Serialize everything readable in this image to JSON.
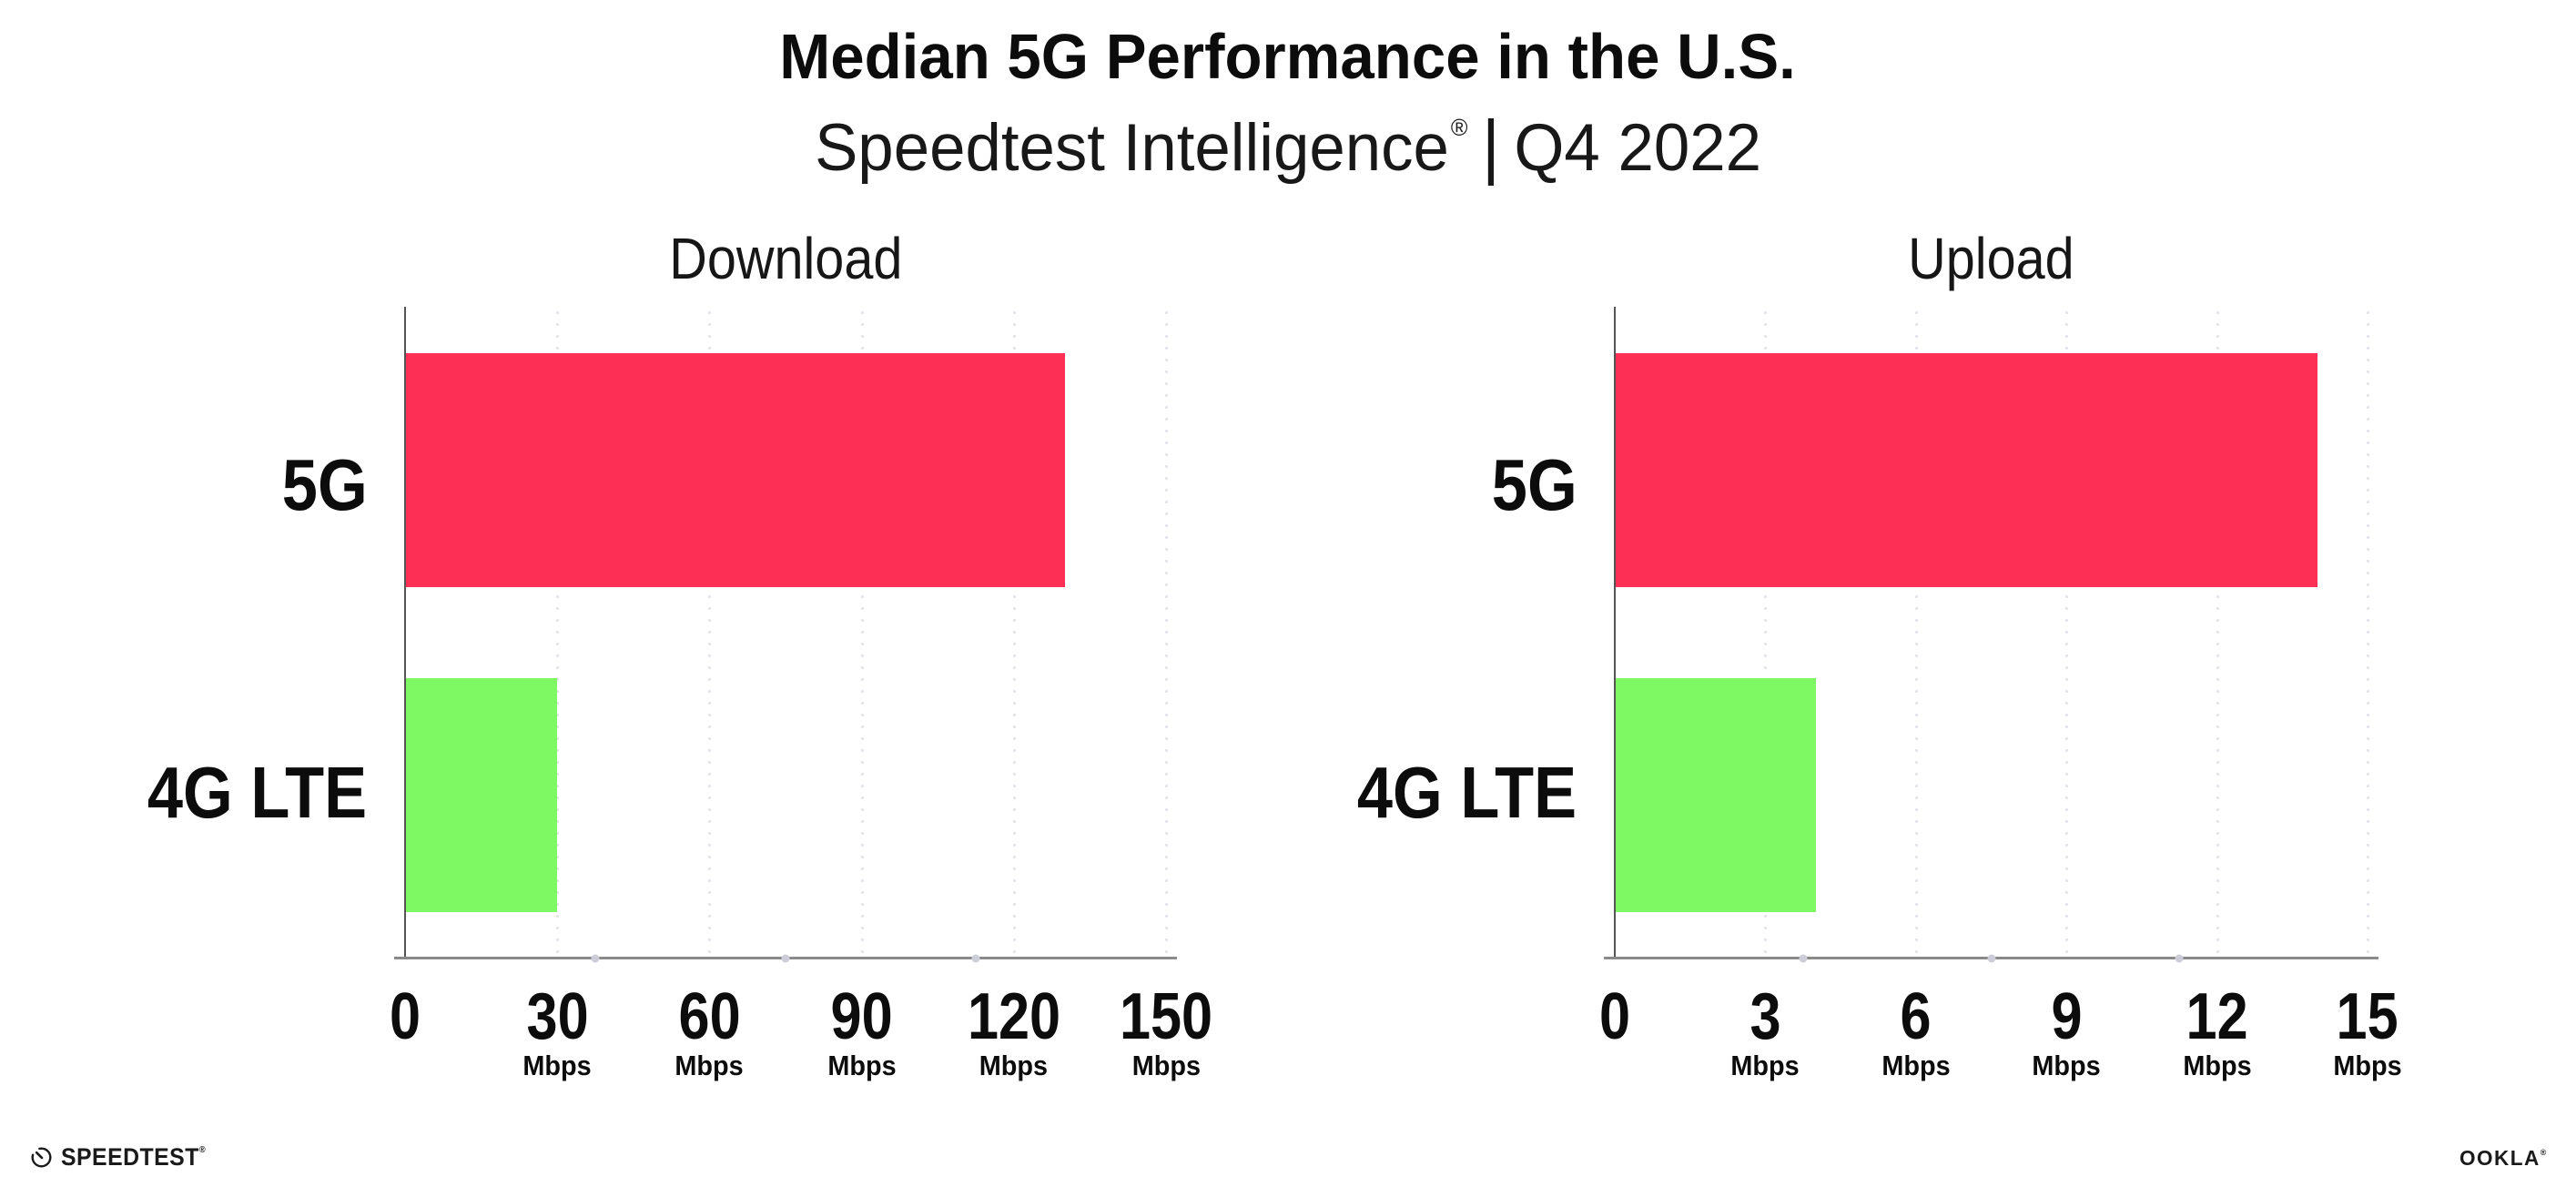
{
  "page": {
    "title": "Median 5G Performance in the U.S.",
    "subtitle": {
      "brand": "Speedtest Intelligence",
      "registered": "®",
      "separator": "|",
      "period": "Q4 2022"
    }
  },
  "colors": {
    "bar_5g": "#FD2F55",
    "bar_4g": "#7EF963",
    "axis": "#8a8a8a",
    "gridline_dots": "#e2e2ea",
    "text": "#111111"
  },
  "chart_data": [
    {
      "type": "bar",
      "orientation": "horizontal",
      "title": "Download",
      "categories": [
        "5G",
        "4G LTE"
      ],
      "values": [
        130,
        30
      ],
      "unit": "Mbps",
      "xlim": [
        0,
        150
      ],
      "xticks": [
        0,
        30,
        60,
        90,
        120,
        150
      ],
      "grid": "dotted-vertical-at-ticks",
      "bar_colors": [
        "#FD2F55",
        "#7EF963"
      ]
    },
    {
      "type": "bar",
      "orientation": "horizontal",
      "title": "Upload",
      "categories": [
        "5G",
        "4G LTE"
      ],
      "values": [
        14,
        4
      ],
      "unit": "Mbps",
      "xlim": [
        0,
        15
      ],
      "xticks": [
        0,
        3,
        6,
        9,
        12,
        15
      ],
      "grid": "dotted-vertical-at-ticks",
      "bar_colors": [
        "#FD2F55",
        "#7EF963"
      ]
    }
  ],
  "footer": {
    "speedtest": {
      "icon": "gauge-icon",
      "label": "SPEEDTEST",
      "registered": "®"
    },
    "ookla": {
      "label": "OOKLA",
      "registered": "®"
    }
  }
}
